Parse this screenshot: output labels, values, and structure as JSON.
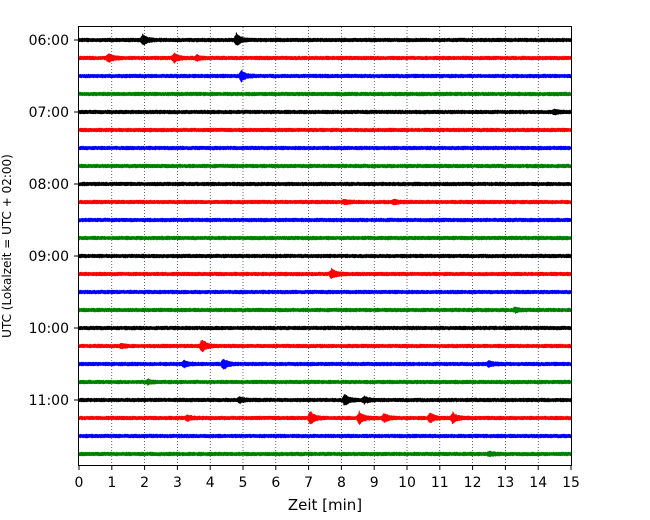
{
  "chart_data": {
    "type": "line",
    "title": "",
    "xlabel": "Zeit  [min]",
    "ylabel": "UTC (Lokalzeit = UTC + 02:00)",
    "xlim": [
      0,
      15
    ],
    "x_ticks": [
      0,
      1,
      2,
      3,
      4,
      5,
      6,
      7,
      8,
      9,
      10,
      11,
      12,
      13,
      14,
      15
    ],
    "x_grid": "dotted vertical at every minute",
    "y_tick_labels": [
      "06:00",
      "07:00",
      "08:00",
      "09:00",
      "10:00",
      "11:00"
    ],
    "trace_interval_min": 15,
    "trace_color_cycle": [
      "#000000",
      "#ff0000",
      "#0000ff",
      "#008000"
    ],
    "traces": [
      {
        "start": "06:00",
        "events": [
          {
            "t": 1.95,
            "amp": 0.45
          },
          {
            "t": 4.8,
            "amp": 0.5
          }
        ]
      },
      {
        "start": "06:15",
        "events": [
          {
            "t": 0.9,
            "amp": 0.35
          },
          {
            "t": 2.9,
            "amp": 0.35
          },
          {
            "t": 3.6,
            "amp": 0.2
          }
        ]
      },
      {
        "start": "06:30",
        "events": [
          {
            "t": 4.95,
            "amp": 0.45
          }
        ]
      },
      {
        "start": "06:45",
        "events": []
      },
      {
        "start": "07:00",
        "events": [
          {
            "t": 14.5,
            "amp": 0.15
          }
        ]
      },
      {
        "start": "07:15",
        "events": []
      },
      {
        "start": "07:30",
        "events": []
      },
      {
        "start": "07:45",
        "events": []
      },
      {
        "start": "08:00",
        "events": []
      },
      {
        "start": "08:15",
        "events": [
          {
            "t": 8.1,
            "amp": 0.15
          },
          {
            "t": 9.6,
            "amp": 0.15
          }
        ]
      },
      {
        "start": "08:30",
        "events": []
      },
      {
        "start": "08:45",
        "events": []
      },
      {
        "start": "09:00",
        "events": []
      },
      {
        "start": "09:15",
        "events": [
          {
            "t": 7.7,
            "amp": 0.4
          }
        ]
      },
      {
        "start": "09:30",
        "events": []
      },
      {
        "start": "09:45",
        "events": [
          {
            "t": 13.3,
            "amp": 0.15
          }
        ]
      },
      {
        "start": "10:00",
        "events": []
      },
      {
        "start": "10:15",
        "events": [
          {
            "t": 1.3,
            "amp": 0.15
          },
          {
            "t": 3.75,
            "amp": 0.55
          }
        ]
      },
      {
        "start": "10:30",
        "events": [
          {
            "t": 3.2,
            "amp": 0.25
          },
          {
            "t": 4.4,
            "amp": 0.45
          },
          {
            "t": 12.5,
            "amp": 0.2
          }
        ]
      },
      {
        "start": "10:45",
        "events": [
          {
            "t": 2.1,
            "amp": 0.15
          }
        ]
      },
      {
        "start": "11:00",
        "events": [
          {
            "t": 4.9,
            "amp": 0.2
          },
          {
            "t": 8.1,
            "amp": 0.5
          },
          {
            "t": 8.7,
            "amp": 0.25
          }
        ]
      },
      {
        "start": "11:15",
        "events": [
          {
            "t": 3.3,
            "amp": 0.2
          },
          {
            "t": 7.05,
            "amp": 0.55
          },
          {
            "t": 8.55,
            "amp": 0.55
          },
          {
            "t": 9.3,
            "amp": 0.35
          },
          {
            "t": 10.7,
            "amp": 0.4
          },
          {
            "t": 11.4,
            "amp": 0.45
          }
        ]
      },
      {
        "start": "11:30",
        "events": []
      },
      {
        "start": "11:45",
        "events": [
          {
            "t": 12.5,
            "amp": 0.15
          }
        ]
      }
    ]
  }
}
